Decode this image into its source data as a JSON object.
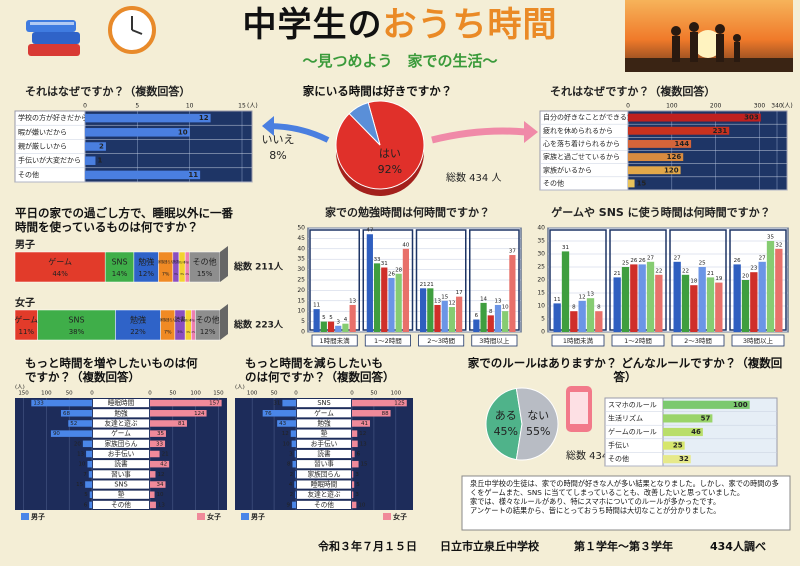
{
  "header": {
    "title_1": "中学生の",
    "title_2": "おうち時間",
    "subtitle": "〜見つめよう　家での生活〜"
  },
  "chart_data": [
    {
      "type": "pie",
      "title": "家にいる時間は好きですか？",
      "categories": [
        "はい",
        "いいえ"
      ],
      "values": [
        92,
        8
      ],
      "value_labels": [
        "92%",
        "8%"
      ],
      "colors": [
        "#e0302a",
        "#5a8fd8"
      ],
      "note": "総数 434 人"
    },
    {
      "type": "bar",
      "orientation": "horizontal",
      "title": "それはなぜですか？（複数回答）",
      "unit": "(人)",
      "categories": [
        "学校の方が好きだから",
        "暇が嫌いだから",
        "親が厳しいから",
        "手伝いが大変だから",
        "その他"
      ],
      "values": [
        12,
        10,
        2,
        1,
        11
      ],
      "color": "#4a7fe0",
      "xlim": [
        0,
        15
      ],
      "xticks": [
        0,
        5,
        10,
        15
      ]
    },
    {
      "type": "bar",
      "orientation": "horizontal",
      "title": "それはなぜですか？（複数回答）",
      "unit": "(人)",
      "categories": [
        "自分の好きなことができるから",
        "疲れを休められるから",
        "心を落ち着けられるから",
        "家族と過ごせているから",
        "家族がいるから",
        "その他"
      ],
      "values": [
        303,
        231,
        144,
        126,
        120,
        15
      ],
      "colors": [
        "#c0211f",
        "#c9321f",
        "#d4643a",
        "#d98b3f",
        "#e2a84a",
        "#e8c25a"
      ],
      "xlim": [
        0,
        340
      ],
      "xticks": [
        0,
        100,
        200,
        300,
        340
      ]
    },
    {
      "type": "bar",
      "orientation": "horizontal",
      "stacked": true,
      "title": "平日の家での過ごし方で、睡眠以外に一番時間を使っているものは何ですか？",
      "categories": [
        "男子",
        "女子"
      ],
      "notes": [
        "総数 211人",
        "総数 223人"
      ],
      "xlim": [
        0,
        100
      ],
      "series": [
        {
          "name": "ゲーム",
          "color": "#e23b2a",
          "values": [
            44,
            11
          ],
          "value_labels": [
            "44%",
            "11%"
          ]
        },
        {
          "name": "SNS",
          "color": "#3fae49",
          "values": [
            14,
            38
          ],
          "value_labels": [
            "14%",
            "38%"
          ]
        },
        {
          "name": "勉強",
          "color": "#2f63c8",
          "values": [
            12,
            22
          ],
          "value_labels": [
            "12%",
            "22%"
          ]
        },
        {
          "name": "家族団らん",
          "color": "#f08a24",
          "values": [
            7,
            7
          ],
          "value_labels": [
            "7%",
            "7%"
          ]
        },
        {
          "name": "読書",
          "color": "#8a4fc0",
          "values": [
            3,
            5
          ],
          "value_labels": [
            "3%",
            "5%"
          ]
        },
        {
          "name": "習い事",
          "color": "#f2d231",
          "values": [
            3,
            3
          ],
          "value_labels": [
            "3%",
            "3%"
          ]
        },
        {
          "name": "手伝い",
          "color": "#ee7fb0",
          "values": [
            2,
            2
          ],
          "value_labels": [
            "2%",
            "2%"
          ]
        },
        {
          "name": "その他",
          "color": "#8e8e8e",
          "values": [
            15,
            12
          ],
          "value_labels": [
            "15%",
            "12%"
          ]
        }
      ]
    },
    {
      "type": "bar",
      "title": "家での勉強時間は何時間ですか？",
      "categories": [
        "1時間未満",
        "1〜2時間",
        "2〜3時間",
        "3時間以上"
      ],
      "ylim": [
        0,
        50
      ],
      "yticks": [
        0,
        5,
        10,
        15,
        20,
        25,
        30,
        35,
        40,
        45,
        50
      ],
      "series": [
        {
          "color": "#2f5fc0",
          "values": [
            11,
            47,
            21,
            6
          ]
        },
        {
          "color": "#3f9e3f",
          "values": [
            5,
            33,
            21,
            14
          ]
        },
        {
          "color": "#cf2f2a",
          "values": [
            5,
            31,
            13,
            8
          ]
        },
        {
          "color": "#6b95e6",
          "values": [
            3,
            26,
            15,
            13
          ]
        },
        {
          "color": "#86cc72",
          "values": [
            4,
            28,
            12,
            10
          ]
        },
        {
          "color": "#e8706a",
          "values": [
            13,
            40,
            17,
            37
          ]
        }
      ]
    },
    {
      "type": "bar",
      "title": "ゲームや SNS に使う時間は何時間ですか？",
      "categories": [
        "1時間未満",
        "1〜2時間",
        "2〜3時間",
        "3時間以上"
      ],
      "ylim": [
        0,
        40
      ],
      "yticks": [
        0,
        5,
        10,
        15,
        20,
        25,
        30,
        35,
        40
      ],
      "series": [
        {
          "color": "#2f5fc0",
          "values": [
            11,
            21,
            27,
            26
          ]
        },
        {
          "color": "#3f9e3f",
          "values": [
            31,
            25,
            22,
            20
          ]
        },
        {
          "color": "#cf2f2a",
          "values": [
            8,
            26,
            18,
            23
          ]
        },
        {
          "color": "#6b95e6",
          "values": [
            12,
            26,
            25,
            27
          ]
        },
        {
          "color": "#86cc72",
          "values": [
            13,
            27,
            21,
            35
          ]
        },
        {
          "color": "#e8706a",
          "values": [
            8,
            22,
            19,
            32
          ]
        }
      ]
    },
    {
      "type": "butterfly",
      "title": "もっと時間を増やしたいものは何ですか？（複数回答）",
      "unit": "(人)",
      "categories": [
        "睡眠時間",
        "勉強",
        "友達と遊ぶ",
        "ゲーム",
        "家族団らん",
        "お手伝い",
        "読書",
        "習い事",
        "SNS",
        "塾",
        "その他"
      ],
      "xlim": [
        0,
        160
      ],
      "xticks": [
        0,
        50,
        100,
        150
      ],
      "series": [
        {
          "name": "男子",
          "color": "#4a86e8",
          "values": [
            133,
            68,
            52,
            90,
            20,
            13,
            10,
            7,
            15,
            5,
            6
          ]
        },
        {
          "name": "女子",
          "color": "#f08a9a",
          "values": [
            157,
            124,
            81,
            35,
            33,
            21,
            42,
            12,
            34,
            10,
            13
          ]
        }
      ]
    },
    {
      "type": "butterfly",
      "title": "もっと時間を減らしたいものは何ですか？（複数回答）",
      "unit": "(人)",
      "categories": [
        "SNS",
        "ゲーム",
        "勉強",
        "塾",
        "お手伝い",
        "読書",
        "習い事",
        "家族団らん",
        "睡眠時間",
        "友達と遊ぶ",
        "その他"
      ],
      "xlim": [
        0,
        130
      ],
      "xticks": [
        0,
        50,
        100
      ],
      "series": [
        {
          "name": "男子",
          "color": "#4a86e8",
          "values": [
            31,
            76,
            43,
            12,
            10,
            3,
            8,
            2,
            4,
            2,
            9
          ]
        },
        {
          "name": "女子",
          "color": "#f08a9a",
          "values": [
            125,
            88,
            41,
            12,
            13,
            6,
            15,
            3,
            5,
            3,
            10
          ]
        }
      ]
    },
    {
      "type": "pie",
      "title": "家でのルールはありますか？ どんなルールですか？（複数回答）",
      "categories": [
        "ある",
        "ない"
      ],
      "values": [
        45,
        55
      ],
      "value_labels": [
        "45%",
        "55%"
      ],
      "colors": [
        "#4fb38a",
        "#b8bcc4"
      ],
      "note": "総数 434 人"
    },
    {
      "type": "bar",
      "orientation": "horizontal",
      "categories": [
        "スマホのルール",
        "生活リズム",
        "ゲームのルール",
        "手伝い",
        "その他"
      ],
      "values": [
        100,
        57,
        46,
        25,
        32
      ],
      "colors": [
        "#7bc96f",
        "#9ad46a",
        "#b9de6a",
        "#d6e66c",
        "#e6e98a"
      ],
      "xlim": [
        0,
        120
      ]
    }
  ],
  "summary": [
    "泉丘中学校の生徒は、家での時間が好きな人が多い結果となりました。しかし、家での時間の多くをゲームまた、SNS に当ててしまっていることも、改善したいと思っていました。",
    "家では、様々なルールがあり、特にスマホについてのルールが多かったです。",
    "アンケートの結果から、皆にとっておうち時間は大切なことが分かりました。"
  ],
  "footer": {
    "date": "令和３年７月１５日",
    "school": "日立市立泉丘中学校",
    "grades": "第１学年〜第３学年",
    "count": "434人調べ"
  }
}
